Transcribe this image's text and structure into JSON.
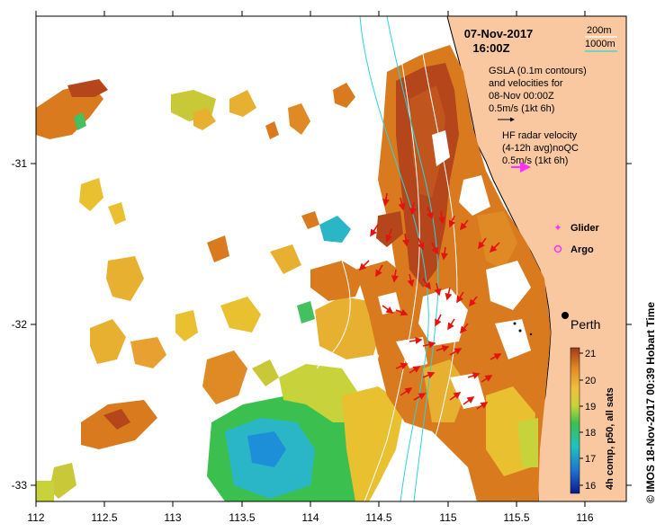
{
  "map": {
    "date": "07-Nov-2017",
    "time": "16:00Z",
    "credit": "© IMOS 18-Nov-2017 00:39 Hobart Time",
    "place_label": "Perth",
    "x_ticks": [
      "112",
      "112.5",
      "113",
      "113.5",
      "114",
      "114.5",
      "115",
      "115.5",
      "116"
    ],
    "y_ticks": [
      "-31",
      "-32",
      "-33"
    ],
    "legend": {
      "contour_200": "200m",
      "contour_1000": "1000m",
      "gsla_line1": "GSLA (0.1m contours)",
      "gsla_line2": "and velocities for",
      "gsla_line3": "08-Nov 00:00Z",
      "gsla_scale": "0.5m/s (1kt 6h)",
      "hf_line1": "HF radar velocity",
      "hf_line2": "(4-12h avg)noQC",
      "hf_scale": "0.5m/s (1kt 6h)",
      "glider": "Glider",
      "argo": "Argo"
    },
    "colorbar": {
      "title": "4h comp, p50, all sats",
      "ticks": [
        "21",
        "20",
        "19",
        "18",
        "17",
        "16"
      ]
    },
    "colors": {
      "land": "#f9c8a0",
      "warm": "#d97a1e",
      "hot": "#b5451b",
      "green": "#44c060",
      "cyan": "#2bb6c8",
      "arrow": "#e3140f",
      "glider": "#ff30ff"
    }
  }
}
